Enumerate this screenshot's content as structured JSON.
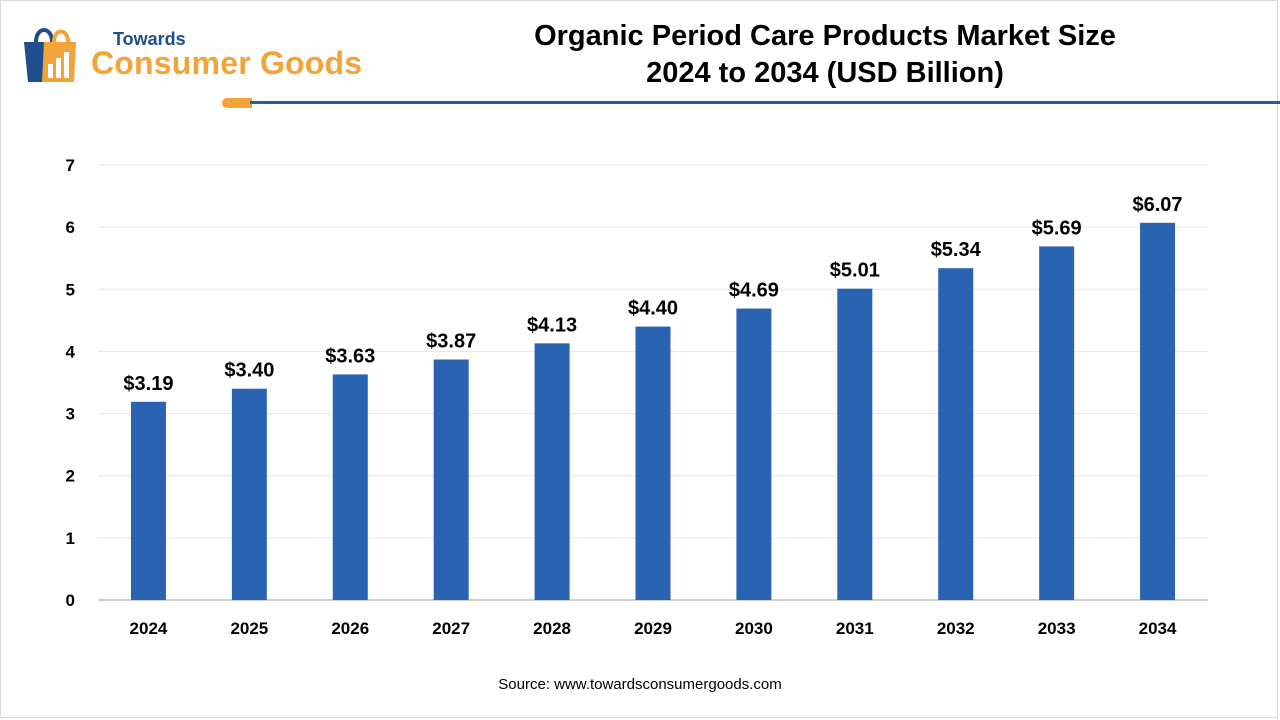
{
  "header": {
    "logo_top": "Towards",
    "logo_main": "Consumer Goods",
    "title_line1": "Organic Period Care Products Market Size",
    "title_line2": "2024 to 2034 (USD Billion)"
  },
  "source": "Source: www.towardsconsumergoods.com",
  "colors": {
    "bar": "#2b63b3",
    "accent_orange": "#f2a33a",
    "accent_blue": "#2f5b93",
    "grid": "#e6e6e6",
    "axis": "#bfbfbf"
  },
  "chart_data": {
    "type": "bar",
    "title": "Organic Period Care Products Market Size 2024 to 2034 (USD Billion)",
    "categories": [
      "2024",
      "2025",
      "2026",
      "2027",
      "2028",
      "2029",
      "2030",
      "2031",
      "2032",
      "2033",
      "2034"
    ],
    "values": [
      3.19,
      3.4,
      3.63,
      3.87,
      4.13,
      4.4,
      4.69,
      5.01,
      5.34,
      5.69,
      6.07
    ],
    "data_labels": [
      "$3.19",
      "$3.40",
      "$3.63",
      "$3.87",
      "$4.13",
      "$4.40",
      "$4.69",
      "$5.01",
      "$5.34",
      "$5.69",
      "$6.07"
    ],
    "yticks": [
      "0",
      "1",
      "2",
      "3",
      "4",
      "5",
      "6",
      "7"
    ],
    "ylim": [
      0,
      7
    ],
    "xlabel": "",
    "ylabel": "",
    "grid": true,
    "legend": "none"
  }
}
